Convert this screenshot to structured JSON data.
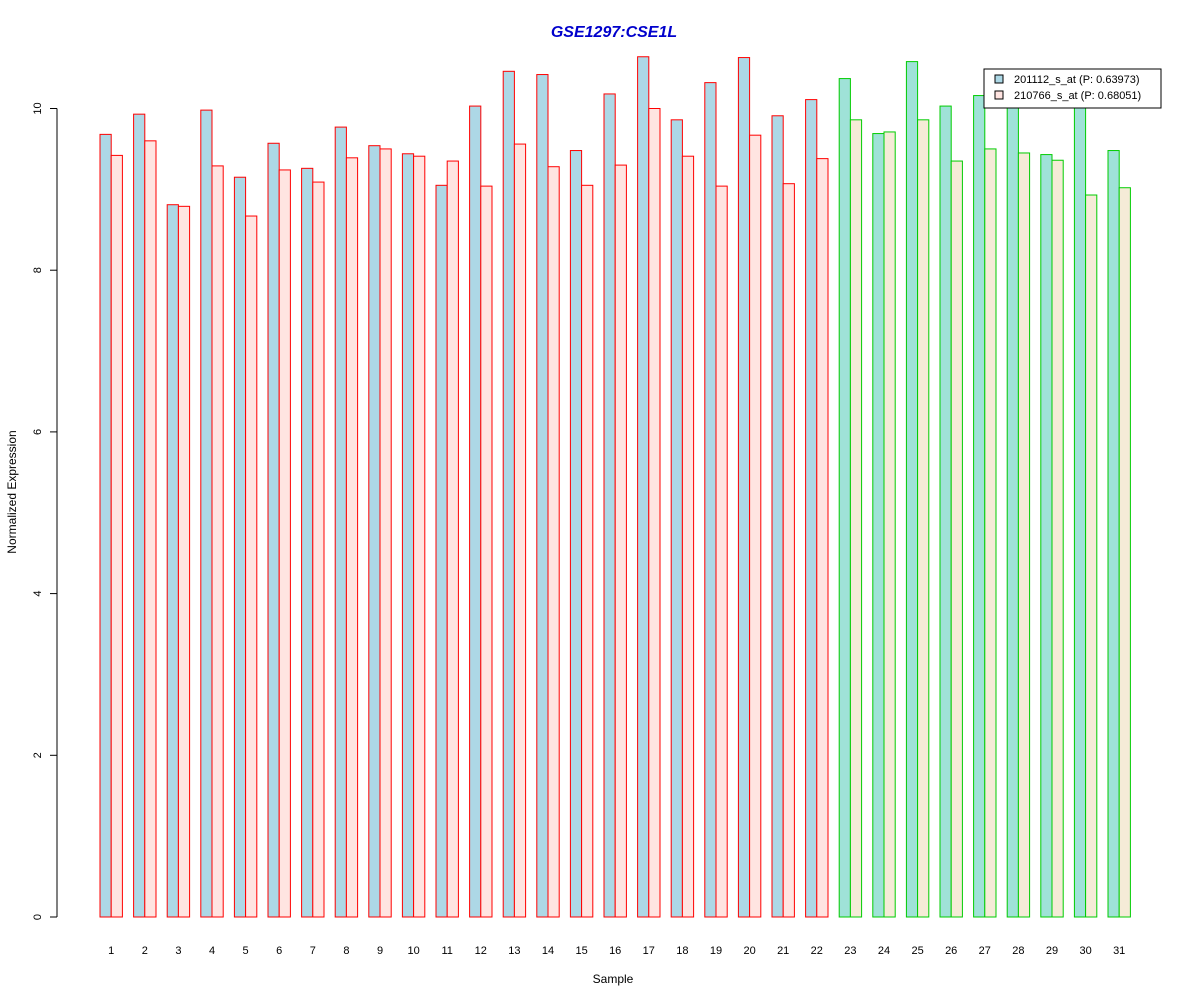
{
  "colors": {
    "title": "#0000CC",
    "group1_border": "#FF0000",
    "group2_border": "#00CC00",
    "series1_fill_group1": "#ADD8E6",
    "series2_fill_group1": "#FFE4E1",
    "series1_fill_group2": "#9FE2D8",
    "series2_fill_group2": "#F5EBD7",
    "axis": "#000000"
  },
  "chart_data": {
    "type": "bar",
    "title": "GSE1297:CSE1L",
    "xlabel": "Sample",
    "ylabel": "Normalized Expression",
    "ylim": [
      0,
      10.6
    ],
    "yticks": [
      0,
      2,
      4,
      6,
      8,
      10
    ],
    "grid": false,
    "legend_position": "top-right",
    "categories": [
      "1",
      "2",
      "3",
      "4",
      "5",
      "6",
      "7",
      "8",
      "9",
      "10",
      "11",
      "12",
      "13",
      "14",
      "15",
      "16",
      "17",
      "18",
      "19",
      "20",
      "21",
      "22",
      "23",
      "24",
      "25",
      "26",
      "27",
      "28",
      "29",
      "30",
      "31"
    ],
    "group_of_category": [
      1,
      1,
      1,
      1,
      1,
      1,
      1,
      1,
      1,
      1,
      1,
      1,
      1,
      1,
      1,
      1,
      1,
      1,
      1,
      1,
      1,
      1,
      2,
      2,
      2,
      2,
      2,
      2,
      2,
      2,
      2
    ],
    "series": [
      {
        "name": "201112_s_at (P: 0.63973)",
        "values": [
          9.68,
          9.93,
          8.81,
          9.98,
          9.15,
          9.57,
          9.26,
          9.77,
          9.54,
          9.44,
          9.05,
          10.03,
          10.46,
          10.42,
          9.48,
          10.18,
          10.64,
          9.86,
          10.32,
          10.63,
          9.91,
          10.11,
          10.37,
          9.69,
          10.58,
          10.03,
          10.16,
          10.02,
          9.43,
          10.07,
          9.48
        ]
      },
      {
        "name": "210766_s_at (P: 0.68051)",
        "values": [
          9.42,
          9.6,
          8.79,
          9.29,
          8.67,
          9.24,
          9.09,
          9.39,
          9.5,
          9.41,
          9.35,
          9.04,
          9.56,
          9.28,
          9.05,
          9.3,
          10.0,
          9.41,
          9.04,
          9.67,
          9.07,
          9.38,
          9.86,
          9.71,
          9.86,
          9.35,
          9.5,
          9.45,
          9.36,
          8.93,
          9.02
        ]
      }
    ]
  }
}
